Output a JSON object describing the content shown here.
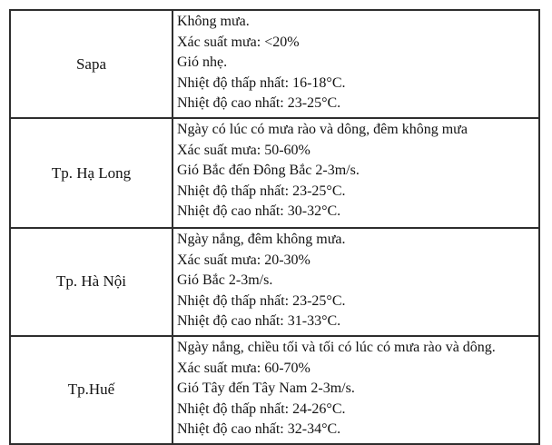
{
  "page": {
    "background": "#ffffff",
    "border_color": "#2e2e2e",
    "text_color": "#131313"
  },
  "table": {
    "rows": [
      {
        "location": "Sapa",
        "lines": [
          "Không mưa.",
          "Xác suất mưa: <20%",
          "Gió nhẹ.",
          "Nhiệt độ thấp nhất: 16-18°C.",
          "Nhiệt độ cao nhất: 23-25°C."
        ]
      },
      {
        "location": "Tp. Hạ Long",
        "lines": [
          "Ngày có lúc có mưa rào và dông, đêm không mưa",
          "Xác suất mưa: 50-60%",
          "Gió Bắc đến Đông Bắc 2-3m/s.",
          "Nhiệt độ thấp nhất: 23-25°C.",
          "Nhiệt độ cao nhất: 30-32°C."
        ]
      },
      {
        "location": "Tp. Hà Nội",
        "lines": [
          "Ngày nắng, đêm không mưa.",
          "Xác suất mưa: 20-30%",
          "Gió Bắc 2-3m/s.",
          "Nhiệt độ thấp nhất: 23-25°C.",
          "Nhiệt độ cao nhất: 31-33°C."
        ]
      },
      {
        "location": "Tp.Huế",
        "lines": [
          "Ngày nắng, chiều tối và tối có lúc có mưa rào và dông.",
          "Xác suất mưa: 60-70%",
          "Gió Tây đến Tây Nam 2-3m/s.",
          "Nhiệt độ thấp nhất: 24-26°C.",
          "Nhiệt độ cao nhất: 32-34°C."
        ]
      }
    ]
  }
}
